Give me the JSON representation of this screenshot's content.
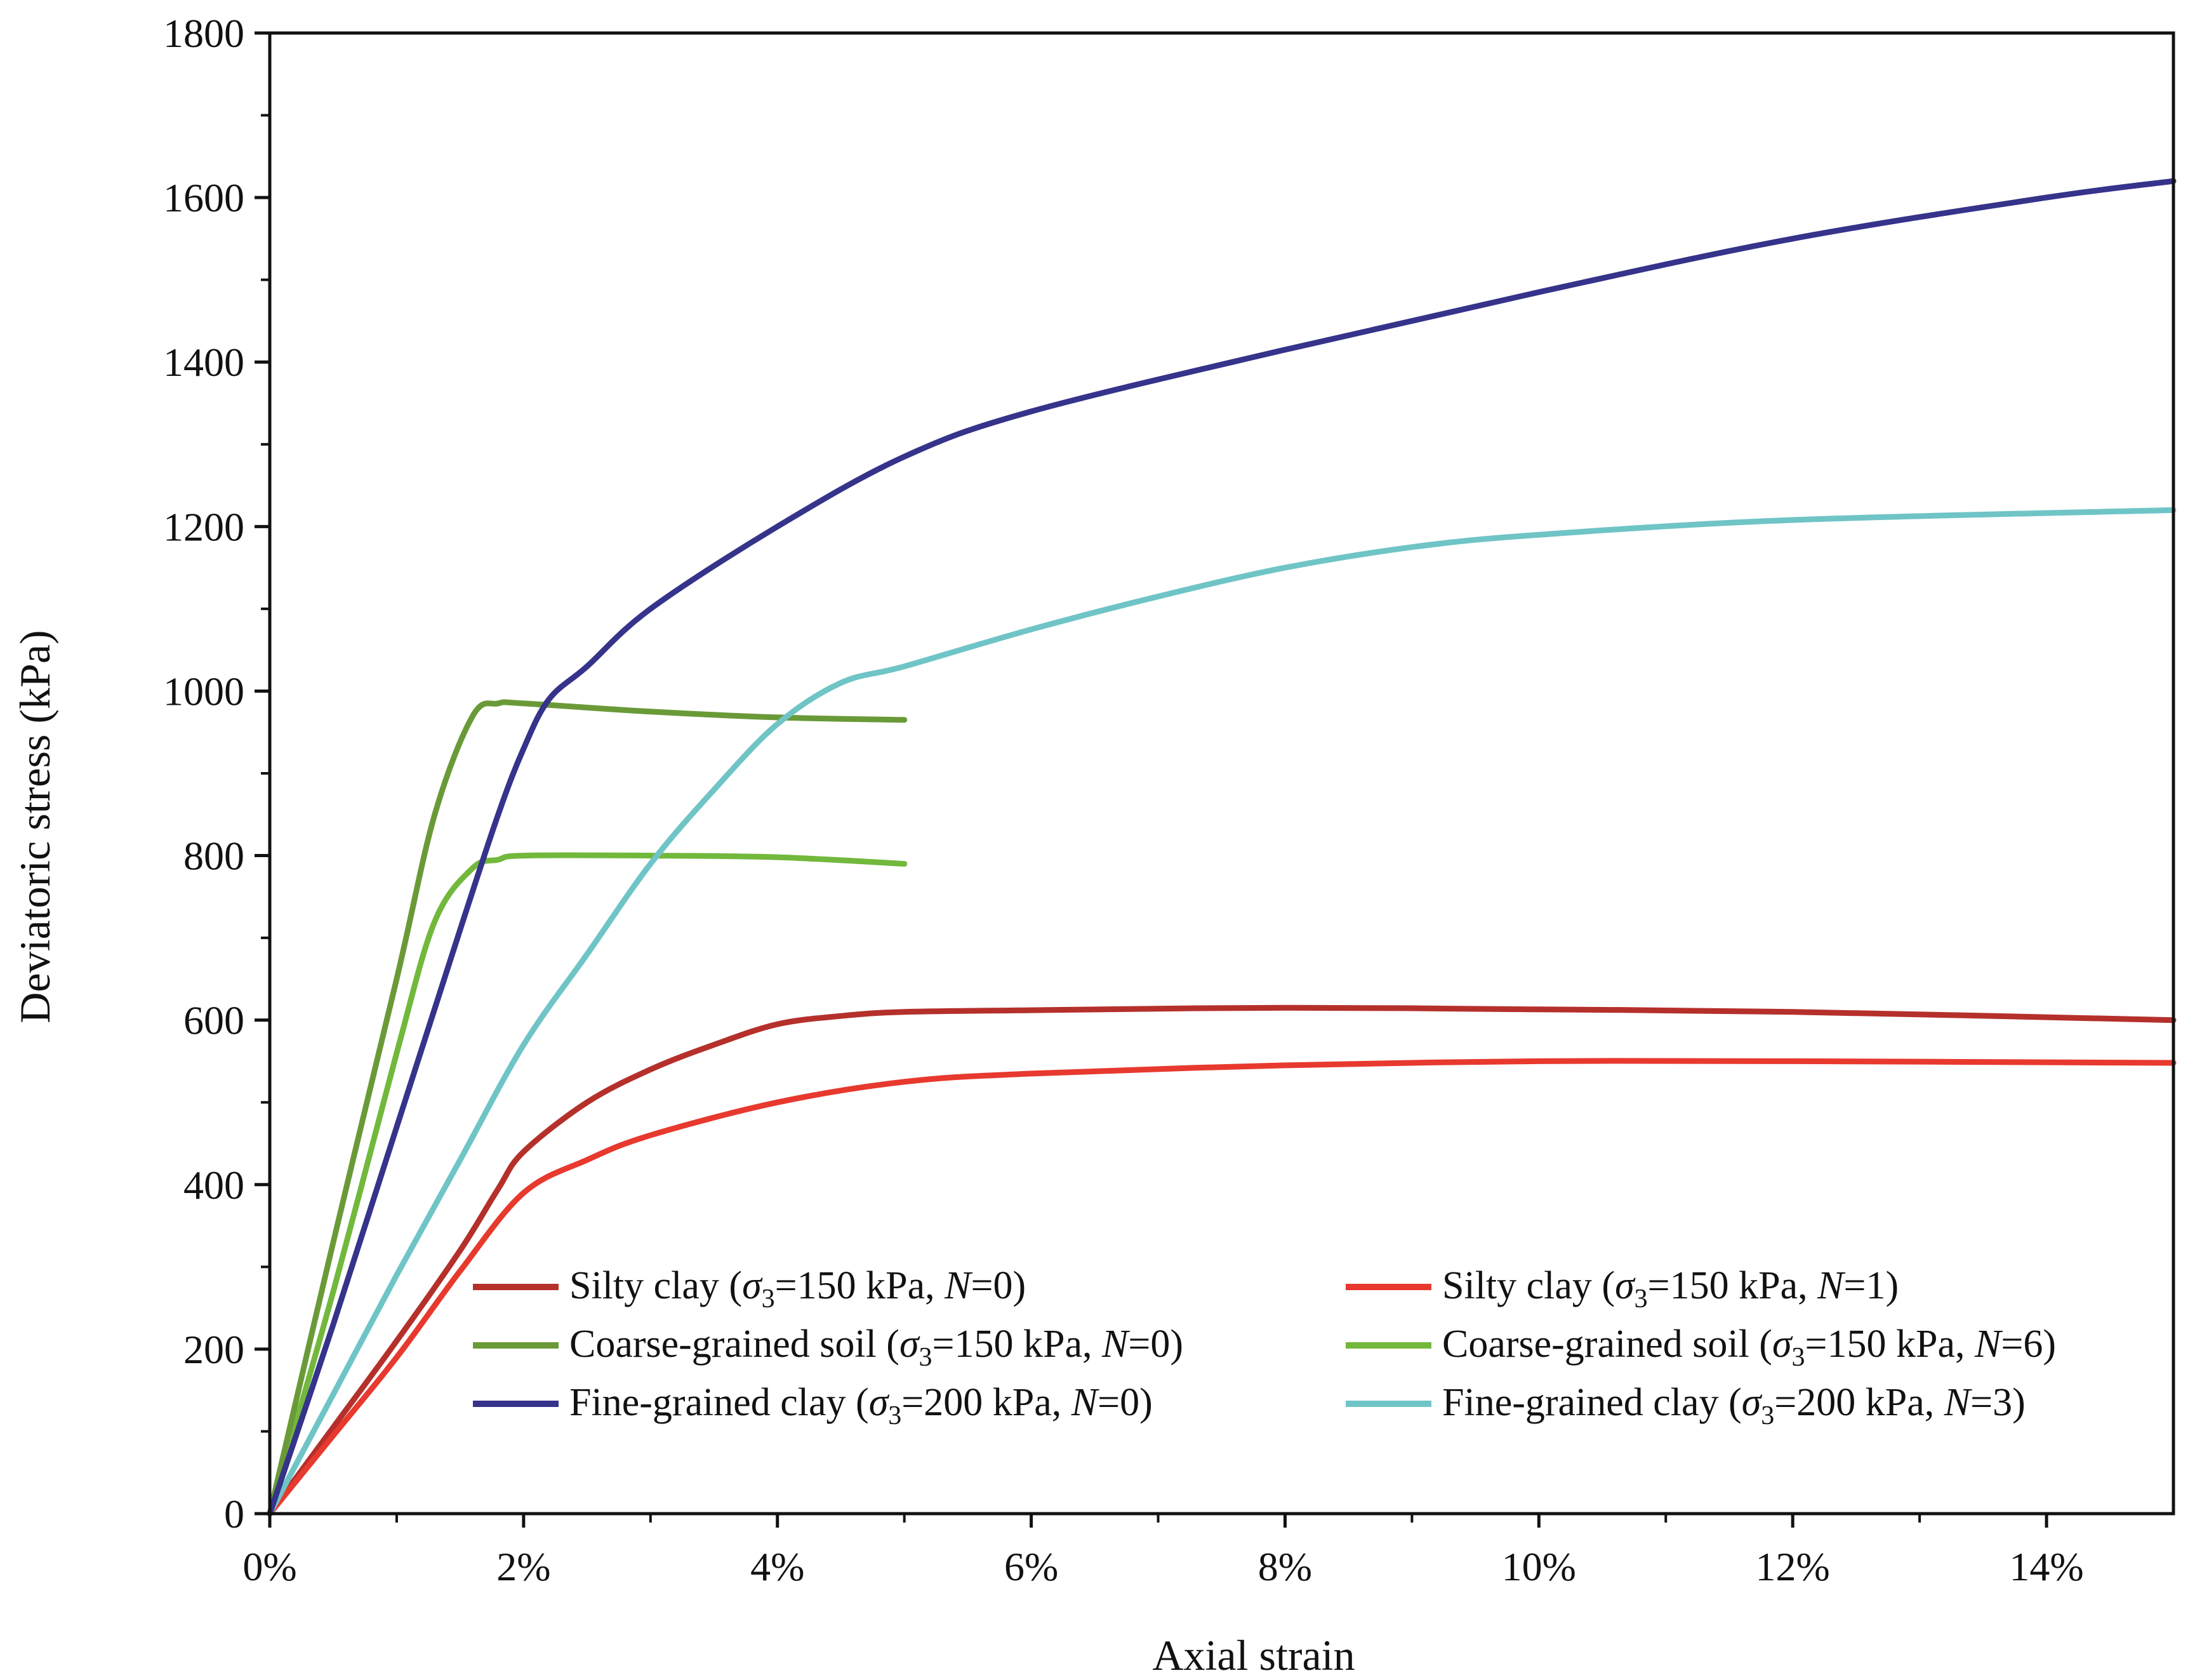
{
  "chart_data": {
    "type": "line",
    "title": "",
    "xlabel": "Axial strain",
    "ylabel": "Deviatoric stress (kPa)",
    "xlim": [
      0,
      15
    ],
    "ylim": [
      0,
      1800
    ],
    "x_unit": "%",
    "x_major_ticks": [
      0,
      2,
      4,
      6,
      8,
      10,
      12,
      14
    ],
    "x_tick_labels": [
      "0%",
      "2%",
      "4%",
      "6%",
      "8%",
      "10%",
      "12%",
      "14%"
    ],
    "y_major_ticks": [
      0,
      200,
      400,
      600,
      800,
      1000,
      1200,
      1400,
      1600,
      1800
    ],
    "y_tick_labels": [
      "0",
      "200",
      "400",
      "600",
      "800",
      "1000",
      "1200",
      "1400",
      "1600",
      "1800"
    ],
    "grid": false,
    "legend_position": "bottom-center, inside plot, two columns",
    "series": [
      {
        "legend": [
          "Silty clay (",
          "σ",
          "3",
          "=150 kPa, ",
          "N",
          "=0)"
        ],
        "color": "#b5302b",
        "x": [
          0,
          0.5,
          1.0,
          1.5,
          1.8,
          2.0,
          2.5,
          3.0,
          3.5,
          4.0,
          4.5,
          5.0,
          6.0,
          8.0,
          10.0,
          12.0,
          15.0
        ],
        "y": [
          0,
          105,
          210,
          320,
          395,
          440,
          500,
          540,
          570,
          595,
          605,
          610,
          612,
          615,
          613,
          610,
          600
        ]
      },
      {
        "legend": [
          "Silty  clay (",
          "σ",
          "3",
          "=150 kPa, ",
          "N",
          "=1)"
        ],
        "color": "#e8392e",
        "x": [
          0,
          0.5,
          1.0,
          1.5,
          2.0,
          2.5,
          3.0,
          4.0,
          5.0,
          6.0,
          8.0,
          10.0,
          12.0,
          15.0
        ],
        "y": [
          0,
          95,
          190,
          295,
          390,
          430,
          460,
          500,
          525,
          535,
          545,
          550,
          550,
          548
        ]
      },
      {
        "legend": [
          "Coarse-grained soil (",
          "σ",
          "3",
          "=150 kPa, ",
          "N",
          "=0)"
        ],
        "color": "#6a9a38",
        "x": [
          0,
          0.5,
          1.0,
          1.3,
          1.6,
          1.8,
          2.0,
          3.0,
          4.0,
          5.0
        ],
        "y": [
          0,
          330,
          650,
          850,
          970,
          985,
          985,
          975,
          968,
          965
        ]
      },
      {
        "legend": [
          "Coarse-grained soil (",
          "σ",
          "3",
          "=150 kPa, ",
          "N",
          "=6)"
        ],
        "color": "#72b83c",
        "x": [
          0,
          0.5,
          1.0,
          1.3,
          1.6,
          1.8,
          2.0,
          3.0,
          4.0,
          5.0
        ],
        "y": [
          0,
          270,
          560,
          720,
          785,
          795,
          800,
          800,
          798,
          790
        ]
      },
      {
        "legend": [
          "Fine-grained clay (",
          "σ",
          "3",
          "=200 kPa, ",
          "N",
          "=0)"
        ],
        "color": "#35338a",
        "x": [
          0,
          0.5,
          1.0,
          1.5,
          1.8,
          2.0,
          2.2,
          2.5,
          3.0,
          4.0,
          5.0,
          6.0,
          8.0,
          10.0,
          12.0,
          14.0,
          15.0
        ],
        "y": [
          0,
          230,
          470,
          710,
          850,
          930,
          990,
          1030,
          1100,
          1200,
          1285,
          1340,
          1415,
          1485,
          1550,
          1600,
          1620
        ]
      },
      {
        "legend": [
          "Fine-grained clay (",
          "σ",
          "3",
          "=200 kPa, ",
          "N",
          "=3)"
        ],
        "color": "#6fc4c6",
        "x": [
          0,
          0.5,
          1.0,
          1.5,
          2.0,
          2.5,
          3.0,
          3.5,
          4.0,
          4.5,
          5.0,
          6.0,
          7.0,
          8.0,
          9.0,
          10.0,
          12.0,
          15.0
        ],
        "y": [
          0,
          145,
          290,
          430,
          570,
          680,
          790,
          880,
          960,
          1010,
          1030,
          1075,
          1115,
          1150,
          1175,
          1190,
          1208,
          1220
        ]
      }
    ]
  }
}
